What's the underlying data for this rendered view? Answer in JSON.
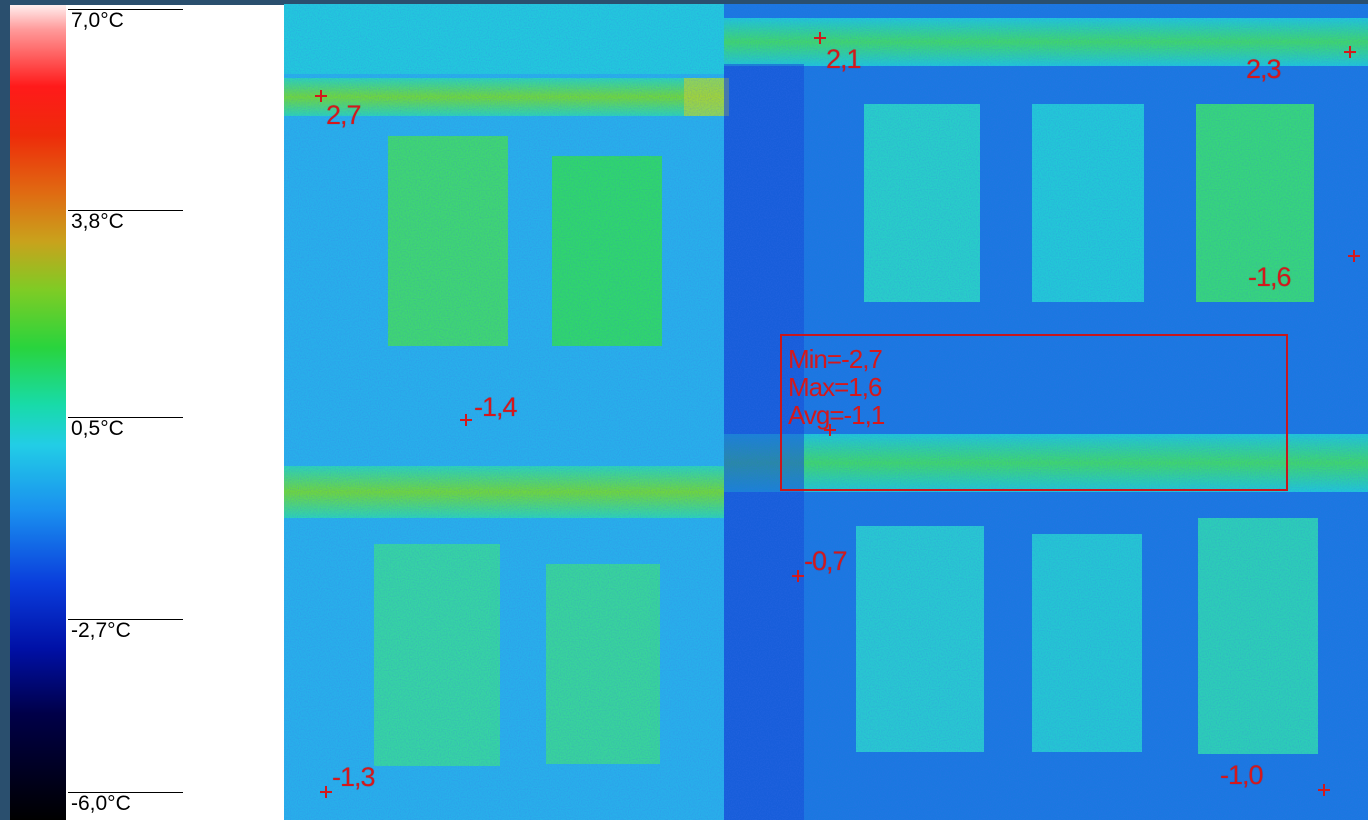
{
  "scale": {
    "ticks": [
      "7,0°C",
      "3,8°C",
      "0,5°C",
      "-2,7°C",
      "-6,0°C"
    ]
  },
  "colors": {
    "marker": "#d4181c",
    "facade": "#1c8ee6",
    "window": "#22d48a",
    "cold": "#1a3fd8"
  },
  "spots": [
    {
      "label": "2,7"
    },
    {
      "label": "2,1"
    },
    {
      "label": "2,3"
    },
    {
      "label": "-1,6"
    },
    {
      "label": "-1,4"
    },
    {
      "label": "-0,7"
    },
    {
      "label": "-1,3"
    },
    {
      "label": "-1,0"
    }
  ],
  "measurement_box": {
    "min": "Min=-2,7",
    "max": "Max=1,6",
    "avg": "Avg=-1,1"
  }
}
